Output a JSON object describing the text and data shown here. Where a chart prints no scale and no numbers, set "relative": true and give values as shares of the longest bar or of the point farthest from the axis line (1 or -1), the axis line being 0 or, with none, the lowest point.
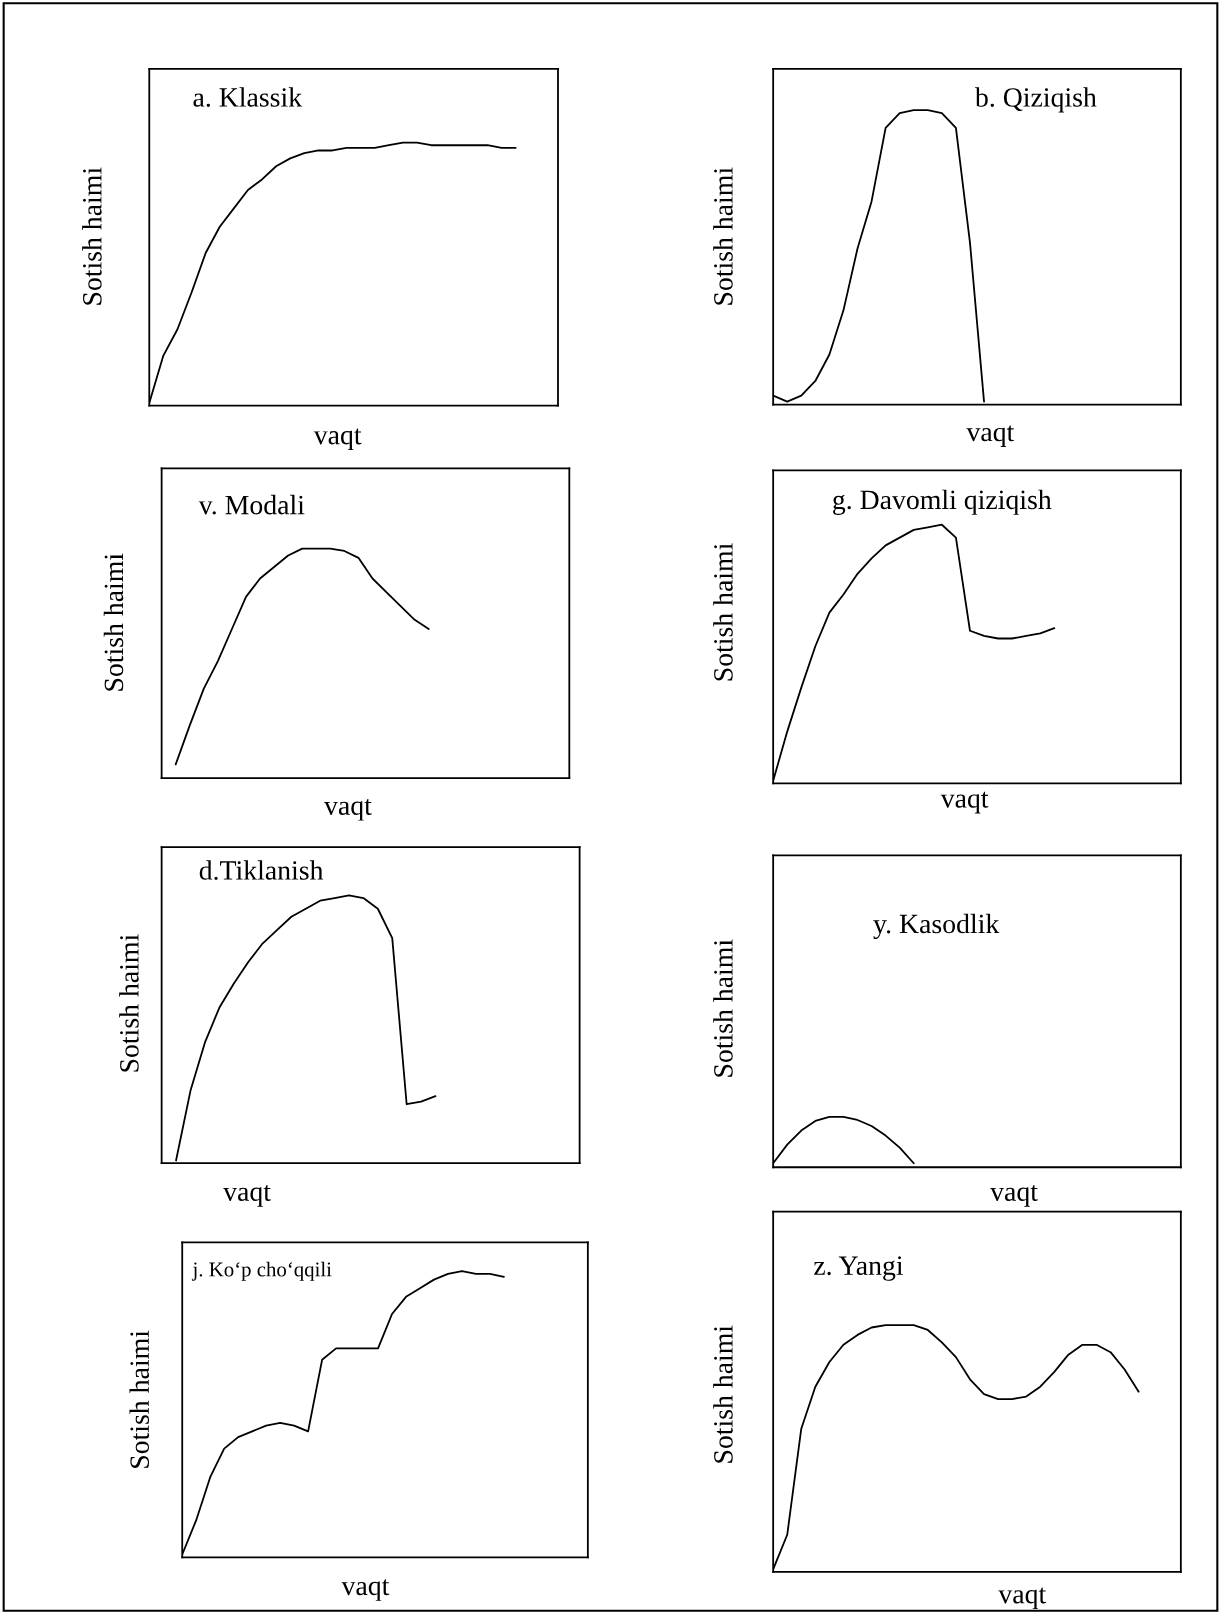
{
  "chart_data": [
    {
      "type": "line",
      "title": "a. Klassik",
      "xlabel": "vaqt",
      "ylabel": "Sotish haimi",
      "relative": true,
      "tick_labels": false,
      "color": "#000000",
      "categories": [
        null,
        null,
        null,
        null,
        null,
        null,
        null,
        null,
        null,
        null,
        null,
        null,
        null,
        null,
        null,
        null,
        null,
        null,
        null,
        null,
        null,
        null,
        null,
        null,
        null,
        null,
        null,
        null,
        null,
        null
      ],
      "values": [
        0.01,
        0.19,
        0.29,
        0.43,
        0.58,
        0.68,
        0.75,
        0.82,
        0.86,
        0.91,
        0.94,
        0.96,
        0.97,
        0.97,
        0.98,
        0.98,
        0.98,
        0.99,
        1.0,
        1.0,
        0.99,
        0.99,
        0.99,
        0.99,
        0.99,
        0.98,
        0.98,
        null,
        null,
        null
      ]
    },
    {
      "type": "line",
      "title": "b. Qiziqish",
      "xlabel": "vaqt",
      "ylabel": "Sotish haimi",
      "relative": true,
      "tick_labels": false,
      "color": "#000000",
      "categories": [
        null,
        null,
        null,
        null,
        null,
        null,
        null,
        null,
        null,
        null,
        null,
        null,
        null,
        null,
        null,
        null,
        null,
        null,
        null,
        null,
        null,
        null,
        null,
        null,
        null,
        null,
        null,
        null,
        null,
        null
      ],
      "values": [
        0.03,
        0.01,
        0.03,
        0.08,
        0.17,
        0.32,
        0.53,
        0.69,
        0.94,
        0.99,
        1.0,
        1.0,
        0.99,
        0.94,
        0.55,
        0.01,
        null,
        null,
        null,
        null,
        null,
        null,
        null,
        null,
        null,
        null,
        null,
        null,
        null,
        null
      ]
    },
    {
      "type": "line",
      "title": "v. Modali",
      "xlabel": "vaqt",
      "ylabel": "Sotish haimi",
      "relative": true,
      "tick_labels": false,
      "color": "#000000",
      "categories": [
        null,
        null,
        null,
        null,
        null,
        null,
        null,
        null,
        null,
        null,
        null,
        null,
        null,
        null,
        null,
        null,
        null,
        null,
        null,
        null,
        null,
        null,
        null,
        null,
        null,
        null,
        null,
        null,
        null,
        null
      ],
      "values": [
        null,
        0.06,
        0.23,
        0.39,
        0.51,
        0.65,
        0.79,
        0.87,
        0.92,
        0.97,
        1.0,
        1.0,
        1.0,
        0.99,
        0.96,
        0.87,
        0.81,
        0.75,
        0.69,
        0.65,
        null,
        null,
        null,
        null,
        null,
        null,
        null,
        null,
        null,
        null
      ]
    },
    {
      "type": "line",
      "title": "g. Davomli qiziqish",
      "xlabel": "vaqt",
      "ylabel": "Sotish haimi",
      "relative": true,
      "tick_labels": false,
      "color": "#000000",
      "categories": [
        null,
        null,
        null,
        null,
        null,
        null,
        null,
        null,
        null,
        null,
        null,
        null,
        null,
        null,
        null,
        null,
        null,
        null,
        null,
        null,
        null,
        null,
        null,
        null,
        null,
        null,
        null,
        null,
        null,
        null
      ],
      "values": [
        0.01,
        0.2,
        0.37,
        0.53,
        0.66,
        0.73,
        0.81,
        0.87,
        0.92,
        0.95,
        0.98,
        0.99,
        1.0,
        0.95,
        0.59,
        0.57,
        0.56,
        0.56,
        0.57,
        0.58,
        0.6,
        null,
        null,
        null,
        null,
        null,
        null,
        null,
        null,
        null
      ]
    },
    {
      "type": "line",
      "title": "d.Tiklanish",
      "xlabel": "vaqt",
      "ylabel": "Sotish haimi",
      "relative": true,
      "tick_labels": false,
      "color": "#000000",
      "categories": [
        null,
        null,
        null,
        null,
        null,
        null,
        null,
        null,
        null,
        null,
        null,
        null,
        null,
        null,
        null,
        null,
        null,
        null,
        null,
        null,
        null,
        null,
        null,
        null,
        null,
        null,
        null,
        null,
        null,
        null
      ],
      "values": [
        null,
        0.01,
        0.27,
        0.45,
        0.58,
        0.67,
        0.75,
        0.82,
        0.87,
        0.92,
        0.95,
        0.98,
        0.99,
        1.0,
        0.99,
        0.95,
        0.84,
        0.22,
        0.23,
        0.25,
        null,
        null,
        null,
        null,
        null,
        null,
        null,
        null,
        null,
        null
      ]
    },
    {
      "type": "line",
      "title": "y. Kasodlik",
      "xlabel": "vaqt",
      "ylabel": "Sotish haimi",
      "relative": true,
      "tick_labels": false,
      "color": "#000000",
      "categories": [
        null,
        null,
        null,
        null,
        null,
        null,
        null,
        null,
        null,
        null,
        null,
        null,
        null,
        null,
        null,
        null,
        null,
        null,
        null,
        null,
        null,
        null,
        null,
        null,
        null,
        null,
        null,
        null,
        null,
        null
      ],
      "values": [
        0.08,
        0.45,
        0.73,
        0.92,
        1.0,
        1.0,
        0.94,
        0.82,
        0.63,
        0.39,
        0.08,
        null,
        null,
        null,
        null,
        null,
        null,
        null,
        null,
        null,
        null,
        null,
        null,
        null,
        null,
        null,
        null,
        null,
        null,
        null
      ]
    },
    {
      "type": "line",
      "title": "j. Ko‘p cho‘qqili",
      "xlabel": "vaqt",
      "ylabel": "Sotish haimi",
      "relative": true,
      "tick_labels": false,
      "color": "#000000",
      "categories": [
        null,
        null,
        null,
        null,
        null,
        null,
        null,
        null,
        null,
        null,
        null,
        null,
        null,
        null,
        null,
        null,
        null,
        null,
        null,
        null,
        null,
        null,
        null,
        null,
        null,
        null,
        null,
        null,
        null,
        null
      ],
      "values": [
        0.01,
        0.13,
        0.28,
        0.38,
        0.42,
        0.44,
        0.46,
        0.47,
        0.46,
        0.44,
        0.69,
        0.73,
        0.73,
        0.73,
        0.73,
        0.85,
        0.91,
        0.94,
        0.97,
        0.99,
        1.0,
        0.99,
        0.99,
        0.98,
        null,
        null,
        null,
        null,
        null,
        null
      ]
    },
    {
      "type": "line",
      "title": "z. Yangi",
      "xlabel": "vaqt",
      "ylabel": "Sotish haimi",
      "relative": true,
      "tick_labels": false,
      "color": "#000000",
      "categories": [
        null,
        null,
        null,
        null,
        null,
        null,
        null,
        null,
        null,
        null,
        null,
        null,
        null,
        null,
        null,
        null,
        null,
        null,
        null,
        null,
        null,
        null,
        null,
        null,
        null,
        null,
        null,
        null,
        null,
        null
      ],
      "values": [
        0.01,
        0.15,
        0.58,
        0.75,
        0.85,
        0.92,
        0.96,
        0.99,
        1.0,
        1.0,
        1.0,
        0.98,
        0.93,
        0.87,
        0.78,
        0.72,
        0.7,
        0.7,
        0.71,
        0.75,
        0.81,
        0.88,
        0.92,
        0.92,
        0.89,
        0.82,
        0.73,
        null,
        null,
        null
      ]
    }
  ]
}
